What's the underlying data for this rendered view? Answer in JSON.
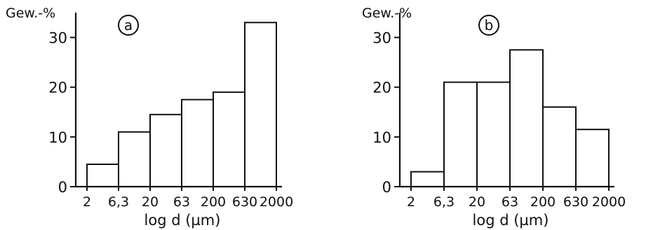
{
  "chart_data": [
    {
      "type": "bar",
      "panel_label": "a",
      "ylabel": "Gew.-%",
      "xlabel": "log d (µm)",
      "bin_edges": [
        "2",
        "6,3",
        "20",
        "63",
        "200",
        "630",
        "2000"
      ],
      "values": [
        4.5,
        11,
        14.5,
        17.5,
        19,
        33
      ],
      "yticks": [
        0,
        10,
        20,
        30
      ],
      "ylim": [
        0,
        35
      ],
      "grid": false
    },
    {
      "type": "bar",
      "panel_label": "b",
      "ylabel": "Gew.-%",
      "xlabel": "log d (µm)",
      "bin_edges": [
        "2",
        "6,3",
        "20",
        "63",
        "200",
        "630",
        "2000"
      ],
      "values": [
        3,
        21,
        21,
        27.5,
        16,
        11.5
      ],
      "yticks": [
        0,
        10,
        20,
        30
      ],
      "ylim": [
        0,
        35
      ],
      "grid": false
    }
  ]
}
